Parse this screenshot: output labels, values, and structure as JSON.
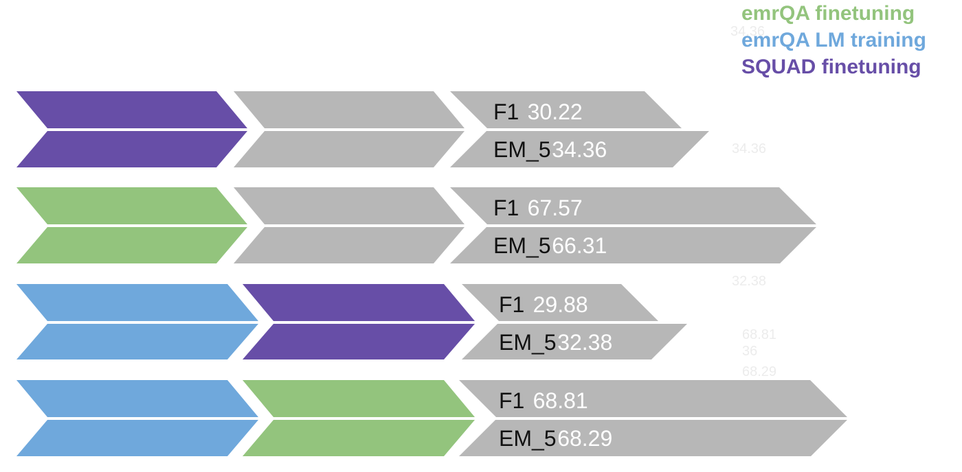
{
  "legend": [
    {
      "label": "emrQA finetuning",
      "color": "#93c47d"
    },
    {
      "label": "emrQA LM training",
      "color": "#6fa8dc"
    },
    {
      "label": "SQUAD finetuning",
      "color": "#674ea7"
    }
  ],
  "ghost_labels": [
    "34.36",
    "34.36",
    "32.38",
    "68.81",
    "36",
    "68.29"
  ],
  "rows": [
    {
      "stages": [
        "#674ea7",
        "#b7b7b7"
      ],
      "metrics": {
        "f1_label": "F1",
        "f1_value": "30.22",
        "em_label": "EM_5",
        "em_value": "34.36"
      }
    },
    {
      "stages": [
        "#93c47d",
        "#b7b7b7"
      ],
      "metrics": {
        "f1_label": "F1",
        "f1_value": "67.57",
        "em_label": "EM_5",
        "em_value": "66.31"
      }
    },
    {
      "stages": [
        "#6fa8dc",
        "#674ea7"
      ],
      "metrics": {
        "f1_label": "F1",
        "f1_value": "29.88",
        "em_label": "EM_5",
        "em_value": "32.38"
      }
    },
    {
      "stages": [
        "#6fa8dc",
        "#93c47d"
      ],
      "metrics": {
        "f1_label": "F1",
        "f1_value": "68.81",
        "em_label": "EM_5",
        "em_value": "68.29"
      }
    }
  ],
  "colors": {
    "metric_arrow": "#b7b7b7",
    "metric_name_text": "#111111",
    "metric_value_text": "#ffffff"
  }
}
